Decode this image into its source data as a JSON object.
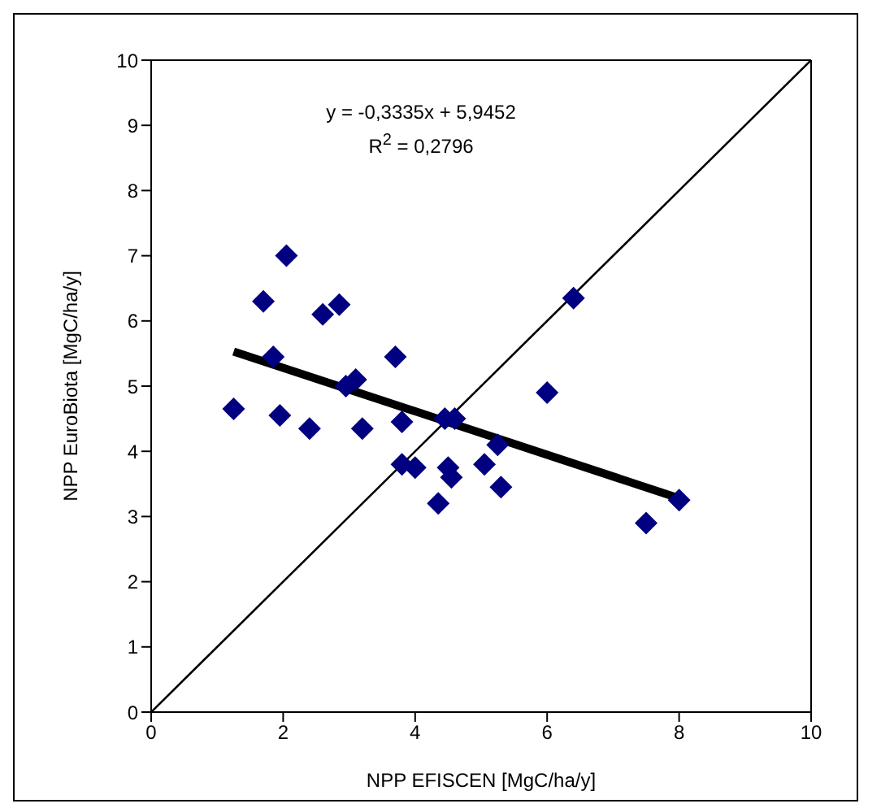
{
  "chart_data": {
    "type": "scatter",
    "xlabel": "NPP EFISCEN [MgC/ha/y]",
    "ylabel": "NPP  EuroBiota [MgC/ha/y]",
    "annotations": [
      "y = -0,3335x + 5,9452",
      "R$^{2}$ = 0,2796"
    ],
    "xlim": [
      0,
      10
    ],
    "ylim": [
      0,
      10
    ],
    "xticks": [
      0,
      2,
      4,
      6,
      8,
      10
    ],
    "yticks": [
      0,
      1,
      2,
      3,
      4,
      5,
      6,
      7,
      8,
      9,
      10
    ],
    "legend": false,
    "marker": "diamond",
    "series": [
      {
        "color": "#000080",
        "x": [
          1.25,
          1.7,
          1.85,
          1.95,
          2.05,
          2.4,
          2.6,
          2.85,
          2.95,
          3.1,
          3.2,
          3.7,
          3.8,
          3.8,
          4.0,
          4.35,
          4.45,
          4.5,
          4.55,
          4.6,
          5.05,
          5.25,
          5.3,
          6.0,
          6.4,
          7.5,
          8.0
        ],
        "values": [
          4.65,
          6.3,
          5.45,
          4.55,
          7.0,
          4.35,
          6.1,
          6.25,
          5.0,
          5.1,
          4.35,
          5.45,
          4.45,
          3.8,
          3.75,
          3.2,
          4.5,
          3.75,
          3.6,
          4.5,
          3.8,
          4.1,
          3.45,
          4.9,
          6.35,
          2.9,
          3.25
        ]
      },
      {
        "type": "line",
        "color": "#000000",
        "x": [
          1.25,
          8.0
        ],
        "values": [
          5.53,
          3.28
        ],
        "marker": "none"
      },
      {
        "type": "line",
        "color": "#000000",
        "x": [
          0,
          10
        ],
        "values": [
          0,
          10
        ],
        "marker": "none"
      }
    ]
  }
}
